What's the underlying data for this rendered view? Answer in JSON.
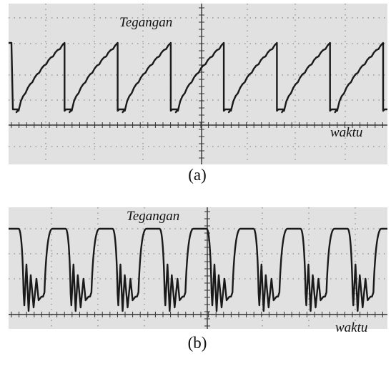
{
  "panels": [
    {
      "id": "a",
      "y_label": "Tegangan",
      "x_label": "waktu",
      "caption": "(a)",
      "cycles": 7,
      "screen_color": "#e1e1e1",
      "trace_color": "#1a1a1a"
    },
    {
      "id": "b",
      "y_label": "Tegangan",
      "x_label": "waktu",
      "caption": "(b)",
      "cycles": 8,
      "screen_color": "#e1e1e1",
      "trace_color": "#1a1a1a"
    }
  ]
}
